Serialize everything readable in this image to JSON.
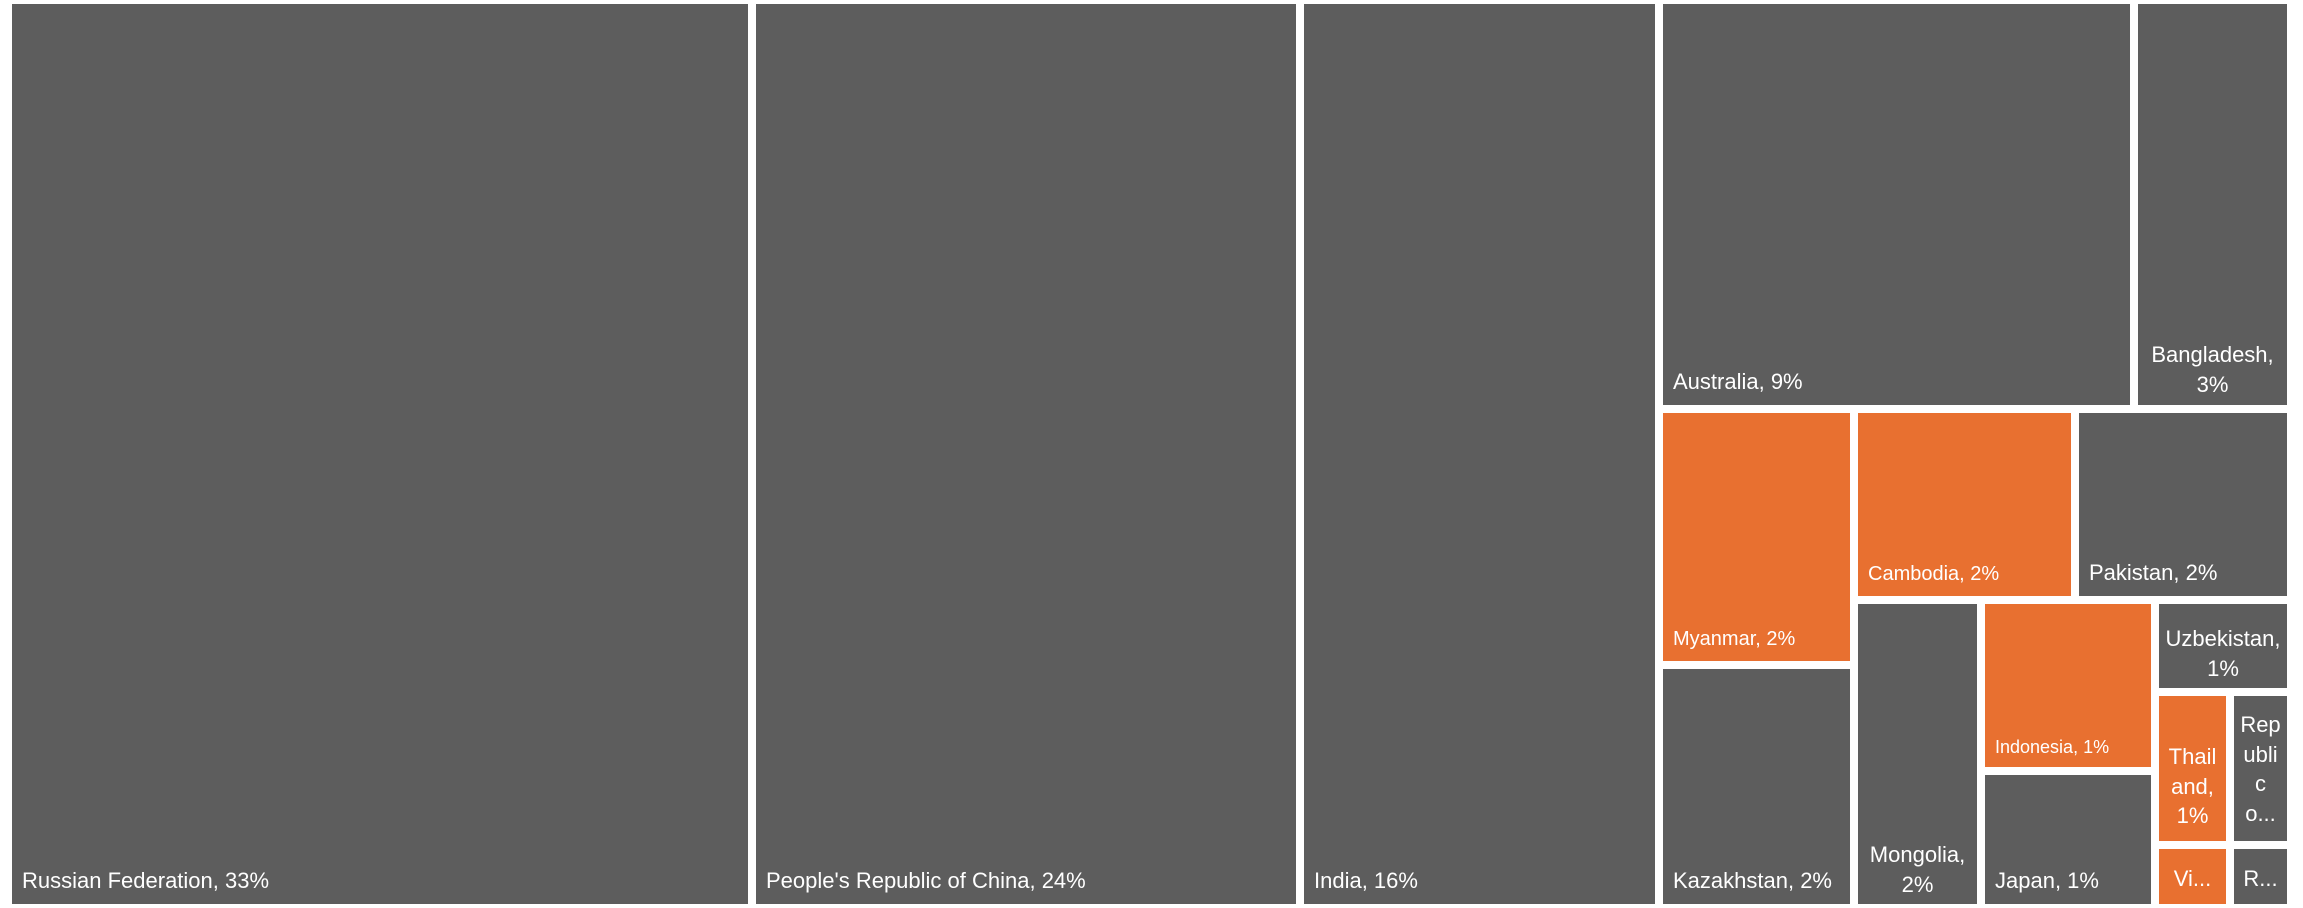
{
  "chart_data": {
    "type": "treemap",
    "title": "",
    "colors": {
      "default": "#5d5d5d",
      "highlight": "#e87030",
      "border": "#ffffff"
    },
    "items": [
      {
        "label": "Russian Federation, 33%",
        "name": "Russian Federation",
        "value": 33,
        "highlight": false
      },
      {
        "label": "People's Republic of China, 24%",
        "name": "People's Republic of China",
        "value": 24,
        "highlight": false
      },
      {
        "label": "India, 16%",
        "name": "India",
        "value": 16,
        "highlight": false
      },
      {
        "label": "Australia, 9%",
        "name": "Australia",
        "value": 9,
        "highlight": false
      },
      {
        "label": "Bangladesh, 3%",
        "name": "Bangladesh",
        "value": 3,
        "highlight": false
      },
      {
        "label": "Myanmar, 2%",
        "name": "Myanmar",
        "value": 2,
        "highlight": true
      },
      {
        "label": "Cambodia, 2%",
        "name": "Cambodia",
        "value": 2,
        "highlight": true
      },
      {
        "label": "Pakistan, 2%",
        "name": "Pakistan",
        "value": 2,
        "highlight": false
      },
      {
        "label": "Kazakhstan, 2%",
        "name": "Kazakhstan",
        "value": 2,
        "highlight": false
      },
      {
        "label": "Mongolia, 2%",
        "name": "Mongolia",
        "value": 2,
        "highlight": false
      },
      {
        "label": "Indonesia, 1%",
        "name": "Indonesia",
        "value": 1,
        "highlight": true
      },
      {
        "label": "Uzbekistan, 1%",
        "name": "Uzbekistan",
        "value": 1,
        "highlight": false
      },
      {
        "label": "Thailand, 1%",
        "name": "Thailand",
        "value": 1,
        "highlight": true
      },
      {
        "label": "Republic o...",
        "name": "Republic o...",
        "value": null,
        "highlight": false
      },
      {
        "label": "Japan, 1%",
        "name": "Japan",
        "value": 1,
        "highlight": false
      },
      {
        "label": "Vi...",
        "name": "Vi...",
        "value": null,
        "highlight": true
      },
      {
        "label": "R...",
        "name": "R...",
        "value": null,
        "highlight": false
      }
    ]
  }
}
